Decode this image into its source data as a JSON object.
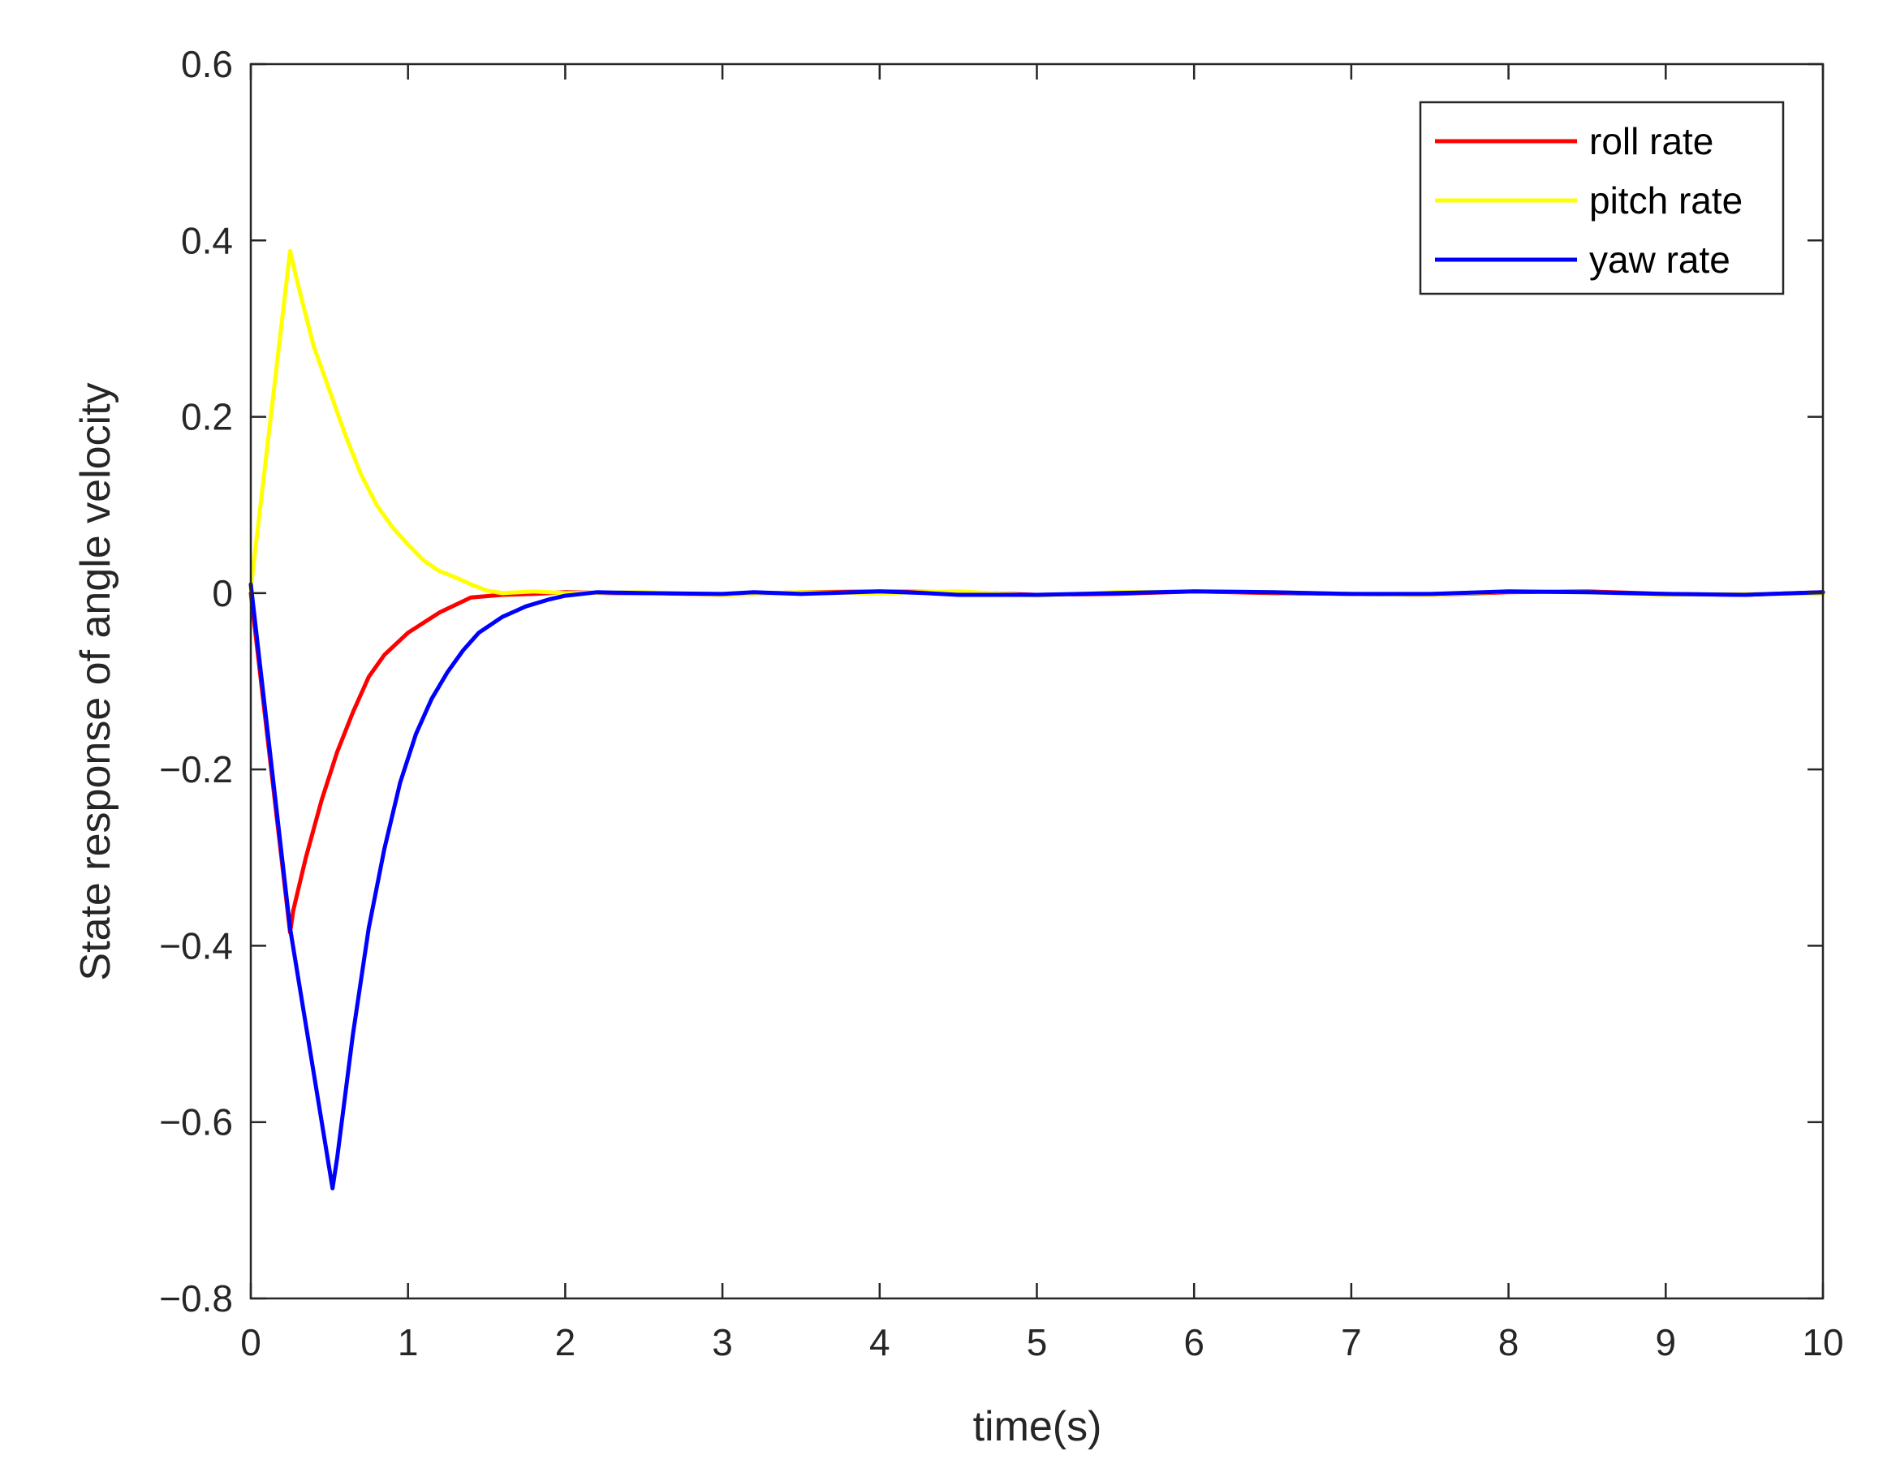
{
  "chart_data": {
    "type": "line",
    "xlabel": "time(s)",
    "ylabel": "State response of angle velocity",
    "xlim": [
      0,
      10
    ],
    "ylim": [
      -0.8,
      0.6
    ],
    "xticks": [
      0,
      1,
      2,
      3,
      4,
      5,
      6,
      7,
      8,
      9,
      10
    ],
    "xtick_labels": [
      "0",
      "1",
      "2",
      "3",
      "4",
      "5",
      "6",
      "7",
      "8",
      "9",
      "10"
    ],
    "yticks": [
      -0.8,
      -0.6,
      -0.4,
      -0.2,
      0,
      0.2,
      0.4,
      0.6
    ],
    "ytick_labels": [
      "−0.8",
      "−0.6",
      "−0.4",
      "−0.2",
      "0",
      "0.2",
      "0.4",
      "0.6"
    ],
    "grid": false,
    "legend_position": "top-right",
    "series": [
      {
        "name": "roll rate",
        "color": "#ff0000",
        "points": [
          [
            0,
            0.0
          ],
          [
            0.25,
            -0.385
          ],
          [
            0.27,
            -0.36
          ],
          [
            0.35,
            -0.3
          ],
          [
            0.45,
            -0.235
          ],
          [
            0.55,
            -0.18
          ],
          [
            0.65,
            -0.135
          ],
          [
            0.75,
            -0.095
          ],
          [
            0.85,
            -0.07
          ],
          [
            1.0,
            -0.045
          ],
          [
            1.2,
            -0.022
          ],
          [
            1.4,
            -0.005
          ],
          [
            1.6,
            -0.002
          ],
          [
            1.8,
            -0.001
          ],
          [
            2.0,
            0.001
          ],
          [
            2.3,
            0.0
          ],
          [
            2.6,
            0.0
          ],
          [
            3.0,
            -0.002
          ],
          [
            3.5,
            0.001
          ],
          [
            4.0,
            0.002
          ],
          [
            4.5,
            0.001
          ],
          [
            5.0,
            -0.002
          ],
          [
            5.5,
            -0.001
          ],
          [
            6.0,
            0.002
          ],
          [
            6.5,
            0.0
          ],
          [
            7.0,
            -0.001
          ],
          [
            7.5,
            -0.002
          ],
          [
            8.0,
            0.001
          ],
          [
            8.5,
            0.002
          ],
          [
            9.0,
            -0.001
          ],
          [
            9.5,
            -0.002
          ],
          [
            10.0,
            0.001
          ]
        ]
      },
      {
        "name": "pitch rate",
        "color": "#ffff00",
        "points": [
          [
            0,
            0.005
          ],
          [
            0.25,
            0.388
          ],
          [
            0.3,
            0.35
          ],
          [
            0.4,
            0.28
          ],
          [
            0.5,
            0.23
          ],
          [
            0.6,
            0.18
          ],
          [
            0.7,
            0.135
          ],
          [
            0.8,
            0.1
          ],
          [
            0.9,
            0.075
          ],
          [
            1.0,
            0.055
          ],
          [
            1.1,
            0.037
          ],
          [
            1.2,
            0.025
          ],
          [
            1.3,
            0.018
          ],
          [
            1.4,
            0.01
          ],
          [
            1.5,
            0.003
          ],
          [
            1.6,
            0.0
          ],
          [
            1.8,
            0.002
          ],
          [
            2.0,
            0.0
          ],
          [
            2.5,
            0.001
          ],
          [
            3.0,
            -0.002
          ],
          [
            3.5,
            0.001
          ],
          [
            4.0,
            0.0
          ],
          [
            4.5,
            0.002
          ],
          [
            5.0,
            -0.003
          ],
          [
            5.5,
            0.001
          ],
          [
            6.0,
            0.002
          ],
          [
            6.5,
            0.001
          ],
          [
            7.0,
            -0.001
          ],
          [
            7.5,
            -0.002
          ],
          [
            8.0,
            0.002
          ],
          [
            8.5,
            0.001
          ],
          [
            9.0,
            -0.002
          ],
          [
            9.5,
            -0.001
          ],
          [
            10.0,
            -0.001
          ]
        ]
      },
      {
        "name": "yaw rate",
        "color": "#0000ff",
        "points": [
          [
            0,
            0.01
          ],
          [
            0.25,
            -0.38
          ],
          [
            0.52,
            -0.675
          ],
          [
            0.55,
            -0.64
          ],
          [
            0.65,
            -0.5
          ],
          [
            0.75,
            -0.38
          ],
          [
            0.85,
            -0.29
          ],
          [
            0.95,
            -0.215
          ],
          [
            1.05,
            -0.16
          ],
          [
            1.15,
            -0.12
          ],
          [
            1.25,
            -0.09
          ],
          [
            1.35,
            -0.065
          ],
          [
            1.45,
            -0.045
          ],
          [
            1.6,
            -0.027
          ],
          [
            1.75,
            -0.015
          ],
          [
            1.9,
            -0.007
          ],
          [
            2.0,
            -0.003
          ],
          [
            2.2,
            0.001
          ],
          [
            2.5,
            0.0
          ],
          [
            3.0,
            -0.001
          ],
          [
            3.2,
            0.001
          ],
          [
            3.5,
            -0.001
          ],
          [
            4.0,
            0.002
          ],
          [
            4.3,
            0.0
          ],
          [
            4.5,
            -0.002
          ],
          [
            5.0,
            -0.002
          ],
          [
            5.5,
            0.0
          ],
          [
            6.0,
            0.002
          ],
          [
            6.5,
            0.001
          ],
          [
            7.0,
            -0.001
          ],
          [
            7.5,
            -0.001
          ],
          [
            8.0,
            0.002
          ],
          [
            8.5,
            0.001
          ],
          [
            9.0,
            -0.001
          ],
          [
            9.5,
            -0.002
          ],
          [
            10.0,
            0.001
          ]
        ]
      }
    ]
  }
}
